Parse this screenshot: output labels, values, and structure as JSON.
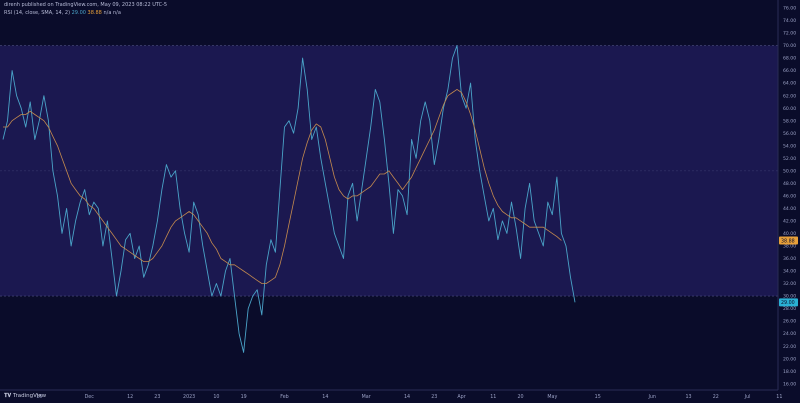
{
  "header": {
    "published_line": "direnh published on TradingView.com, May 09, 2023 08:22 UTC-5",
    "indicator_line": "RSI (14, close, SMA, 14, 2)",
    "rsi_value": "29.00",
    "ma_value": "38.88",
    "extra": "n/a  n/a"
  },
  "branding": {
    "logo_text": "TradingView"
  },
  "colors": {
    "background": "#0a0c2a",
    "band_fill": "#1b1850",
    "rsi_line": "#4aa3c8",
    "ma_line": "#c48a4e",
    "rsi_label_bg": "#2ab0d4",
    "ma_label_bg": "#e8a03a",
    "grid_dash": "#55598a"
  },
  "chart_data": {
    "type": "line",
    "title": "RSI (14, close, SMA, 14, 2)",
    "ylim": [
      15,
      76
    ],
    "y_ticks": [
      16,
      18,
      20,
      22,
      24,
      26,
      28,
      30,
      32,
      34,
      36,
      38,
      40,
      42,
      44,
      46,
      48,
      50,
      52,
      54,
      56,
      58,
      60,
      62,
      64,
      66,
      68,
      70,
      72,
      74,
      76
    ],
    "band": {
      "upper": 70,
      "middle": 50,
      "lower": 30
    },
    "x_ticks": [
      {
        "label": "15",
        "i": 8
      },
      {
        "label": "Dec",
        "i": 19
      },
      {
        "label": "12",
        "i": 28
      },
      {
        "label": "23",
        "i": 34
      },
      {
        "label": "2023",
        "i": 41
      },
      {
        "label": "10",
        "i": 47
      },
      {
        "label": "19",
        "i": 53
      },
      {
        "label": "Feb",
        "i": 62
      },
      {
        "label": "14",
        "i": 71
      },
      {
        "label": "Mar",
        "i": 80
      },
      {
        "label": "14",
        "i": 89
      },
      {
        "label": "23",
        "i": 95
      },
      {
        "label": "Apr",
        "i": 101
      },
      {
        "label": "11",
        "i": 108
      },
      {
        "label": "20",
        "i": 114
      },
      {
        "label": "May",
        "i": 121
      },
      {
        "label": "15",
        "i": 131
      },
      {
        "label": "Jun",
        "i": 143
      },
      {
        "label": "13",
        "i": 151
      },
      {
        "label": "22",
        "i": 157
      },
      {
        "label": "Jul",
        "i": 164
      },
      {
        "label": "11",
        "i": 171
      }
    ],
    "x_index_max": 177,
    "series": [
      {
        "name": "RSI",
        "values": [
          55,
          58,
          66,
          62,
          60,
          57,
          61,
          55,
          58,
          62,
          58,
          50,
          46,
          40,
          44,
          38,
          42,
          45,
          47,
          43,
          45,
          44,
          38,
          42,
          36,
          30,
          34,
          39,
          40,
          36,
          38,
          33,
          35,
          38,
          42,
          47,
          51,
          49,
          50,
          44,
          40,
          37,
          45,
          43,
          38,
          34,
          30,
          32,
          30,
          34,
          36,
          30,
          24,
          21,
          28,
          30,
          31,
          27,
          35,
          39,
          37,
          47,
          57,
          58,
          56,
          60,
          68,
          63,
          55,
          57,
          52,
          48,
          44,
          40,
          38,
          36,
          46,
          48,
          42,
          47,
          52,
          57,
          63,
          61,
          55,
          48,
          40,
          47,
          46,
          43,
          55,
          52,
          58,
          61,
          58,
          51,
          55,
          60,
          63,
          68,
          70,
          62,
          60,
          64,
          55,
          50,
          46,
          42,
          44,
          39,
          42,
          40,
          45,
          41,
          36,
          44,
          48,
          42,
          40,
          38,
          45,
          43,
          49,
          40,
          38,
          33,
          29.0
        ]
      },
      {
        "name": "RSI-based MA",
        "values": [
          57,
          57,
          58,
          58.5,
          59,
          59,
          59.5,
          59,
          58.5,
          58,
          57,
          55.5,
          54,
          52,
          50,
          48,
          47,
          46,
          45.5,
          44.5,
          44,
          43,
          42,
          41,
          40,
          39,
          38,
          37.5,
          37,
          36.5,
          36,
          35.5,
          35.5,
          36,
          37,
          38,
          39.5,
          41,
          42,
          42.5,
          43,
          43.5,
          43,
          42,
          41,
          40,
          38.5,
          37.5,
          36,
          35.5,
          35,
          35,
          34.5,
          34,
          33.5,
          33,
          32.5,
          32,
          32,
          32.5,
          33,
          35,
          38,
          41.5,
          45,
          48.5,
          52,
          54.5,
          56.5,
          57.5,
          57,
          55,
          52,
          49,
          47,
          46,
          45.5,
          46,
          46,
          46.5,
          47,
          47.5,
          48.5,
          49.5,
          49.5,
          50,
          49,
          48,
          47,
          48,
          49,
          50.5,
          52,
          53.5,
          55,
          56.5,
          58.5,
          60.5,
          62,
          62.5,
          63,
          62.5,
          61,
          59,
          56.5,
          53.5,
          50.5,
          48,
          46,
          44.5,
          43.5,
          43,
          42.5,
          42.5,
          42,
          41.5,
          41,
          41,
          41,
          41,
          40.5,
          40,
          39.5,
          38.88
        ]
      }
    ]
  }
}
